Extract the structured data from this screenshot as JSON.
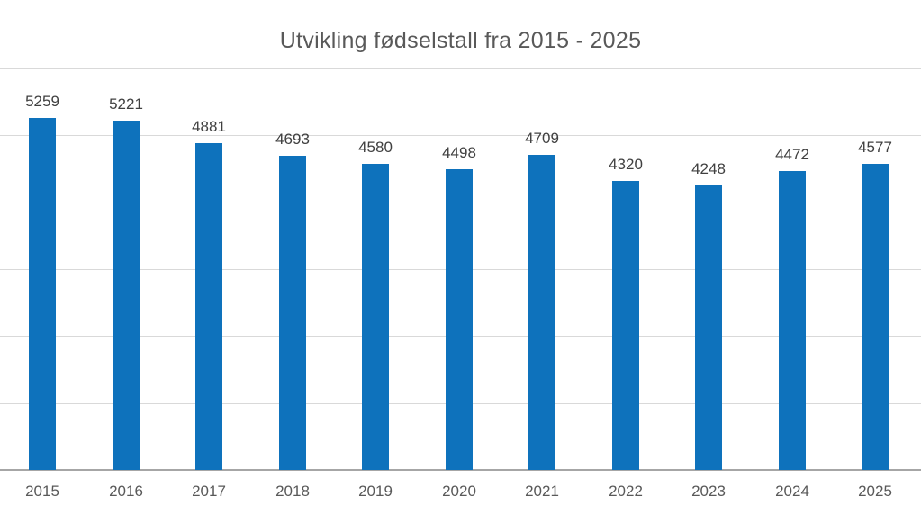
{
  "chart_data": {
    "type": "bar",
    "title": "Utvikling fødselstall fra 2015 - 2025",
    "categories": [
      "2015",
      "2016",
      "2017",
      "2018",
      "2019",
      "2020",
      "2021",
      "2022",
      "2023",
      "2024",
      "2025"
    ],
    "values": [
      5259,
      5221,
      4881,
      4693,
      4580,
      4498,
      4709,
      4320,
      4248,
      4472,
      4577
    ],
    "xlabel": "",
    "ylabel": "",
    "ylim": [
      0,
      6000
    ],
    "gridline_step": 1000,
    "grid": true,
    "y_tick_labels_visible": false,
    "data_labels_visible": true,
    "legend_position": "none",
    "colors": {
      "bar": "#0e72bc",
      "title_text": "#595959",
      "value_label_text": "#404040",
      "axis_tick_text": "#595959",
      "gridline": "#d9d9d9",
      "axis_line": "#a6a6a6",
      "background": "#ffffff"
    }
  }
}
